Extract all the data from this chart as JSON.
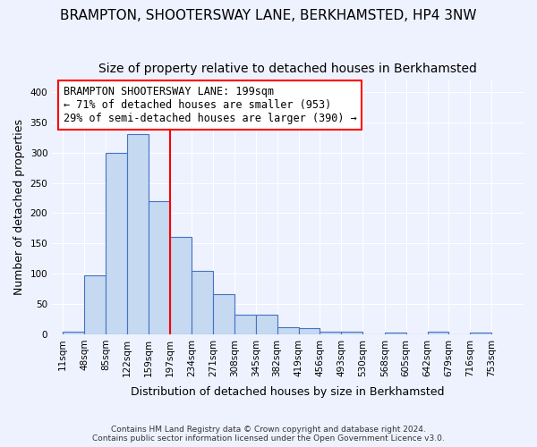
{
  "title": "BRAMPTON, SHOOTERSWAY LANE, BERKHAMSTED, HP4 3NW",
  "subtitle": "Size of property relative to detached houses in Berkhamsted",
  "xlabel": "Distribution of detached houses by size in Berkhamsted",
  "ylabel": "Number of detached properties",
  "footnote1": "Contains HM Land Registry data © Crown copyright and database right 2024.",
  "footnote2": "Contains public sector information licensed under the Open Government Licence v3.0.",
  "bar_values": [
    4,
    98,
    300,
    330,
    220,
    160,
    105,
    67,
    32,
    32,
    11,
    10,
    5,
    5,
    0,
    3,
    0,
    4,
    0,
    3
  ],
  "bin_labels": [
    "11sqm",
    "48sqm",
    "85sqm",
    "122sqm",
    "159sqm",
    "197sqm",
    "234sqm",
    "271sqm",
    "308sqm",
    "345sqm",
    "382sqm",
    "419sqm",
    "456sqm",
    "493sqm",
    "530sqm",
    "568sqm",
    "605sqm",
    "642sqm",
    "679sqm",
    "716sqm",
    "753sqm"
  ],
  "bar_color": "#c5d9f1",
  "bar_edge_color": "#4472c4",
  "vline_x": 197,
  "vline_color": "red",
  "bin_edges_values": [
    11,
    48,
    85,
    122,
    159,
    197,
    234,
    271,
    308,
    345,
    382,
    419,
    456,
    493,
    530,
    568,
    605,
    642,
    679,
    716,
    753
  ],
  "annotation_text": "BRAMPTON SHOOTERSWAY LANE: 199sqm\n← 71% of detached houses are smaller (953)\n29% of semi-detached houses are larger (390) →",
  "annotation_box_color": "white",
  "annotation_box_edge": "red",
  "ylim": [
    0,
    420
  ],
  "yticks": [
    0,
    50,
    100,
    150,
    200,
    250,
    300,
    350,
    400
  ],
  "background_color": "#eef2ff",
  "grid_color": "white",
  "title_fontsize": 11,
  "subtitle_fontsize": 10,
  "ylabel_fontsize": 9,
  "xlabel_fontsize": 9,
  "tick_fontsize": 7.5,
  "annotation_fontsize": 8.5
}
